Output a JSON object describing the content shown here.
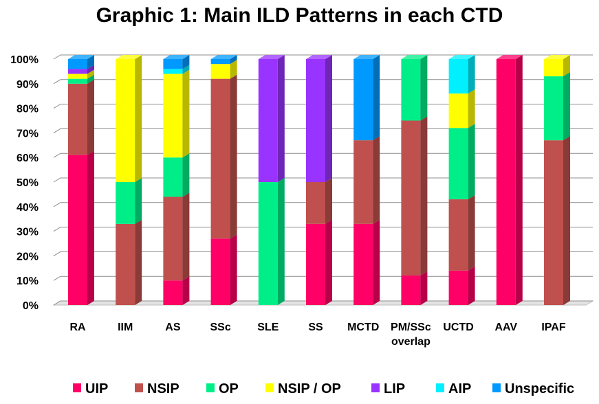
{
  "chart_data": {
    "type": "bar",
    "stacked": true,
    "style": "3d",
    "title": "Graphic 1: Main ILD Patterns in each CTD",
    "xlabel": "",
    "ylabel": "",
    "ylim": [
      0,
      100
    ],
    "ytick_labels": [
      "0%",
      "10%",
      "20%",
      "30%",
      "40%",
      "50%",
      "60%",
      "70%",
      "80%",
      "90%",
      "100%"
    ],
    "grid": true,
    "legend_position": "bottom",
    "categories": [
      "RA",
      "IIM",
      "AS",
      "SSc",
      "SLE",
      "SS",
      "MCTD",
      "PM/SSc overlap",
      "UCTD",
      "AAV",
      "IPAF"
    ],
    "category_lines": [
      [
        "RA"
      ],
      [
        "IIM"
      ],
      [
        "AS"
      ],
      [
        "SSc"
      ],
      [
        "SLE"
      ],
      [
        "SS"
      ],
      [
        "MCTD"
      ],
      [
        "PM/SSc",
        "overlap"
      ],
      [
        "UCTD"
      ],
      [
        "AAV"
      ],
      [
        "IPAF"
      ]
    ],
    "series": [
      {
        "name": "UIP",
        "color": "#ff0066",
        "values": [
          61,
          0,
          10,
          27,
          0,
          33,
          33,
          12,
          14,
          100,
          0
        ]
      },
      {
        "name": "NSIP",
        "color": "#c0504d",
        "values": [
          29,
          33,
          34,
          65,
          0,
          17,
          34,
          63,
          29,
          0,
          67
        ]
      },
      {
        "name": "OP",
        "color": "#00ee88",
        "values": [
          2,
          17,
          16,
          0,
          50,
          0,
          0,
          25,
          29,
          0,
          26
        ]
      },
      {
        "name": "NSIP / OP",
        "color": "#ffff00",
        "values": [
          2,
          50,
          34,
          6,
          0,
          0,
          0,
          0,
          14,
          0,
          7
        ]
      },
      {
        "name": "LIP",
        "color": "#9933ff",
        "values": [
          2,
          0,
          0,
          0,
          50,
          50,
          0,
          0,
          0,
          0,
          0
        ]
      },
      {
        "name": "AIP",
        "color": "#00f0ff",
        "values": [
          0,
          0,
          2,
          0,
          0,
          0,
          0,
          0,
          14,
          0,
          0
        ]
      },
      {
        "name": "Unspecific",
        "color": "#0099ff",
        "values": [
          4,
          0,
          4,
          2,
          0,
          0,
          33,
          0,
          0,
          0,
          0
        ]
      }
    ]
  }
}
